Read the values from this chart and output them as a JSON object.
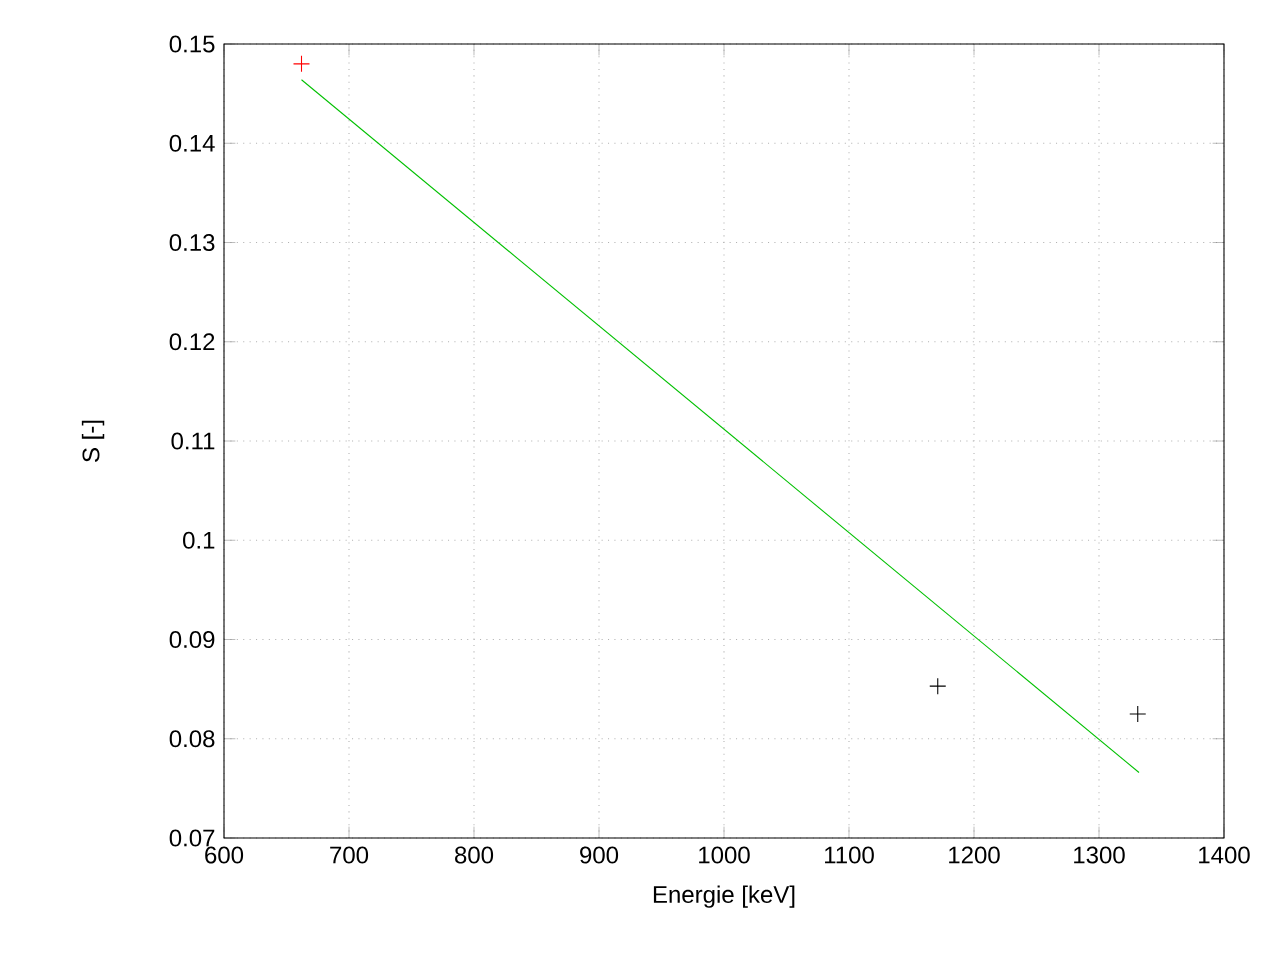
{
  "chart_data": {
    "type": "scatter",
    "xlabel": "Energie [keV]",
    "ylabel": "S [-]",
    "xlim": [
      600,
      1400
    ],
    "ylim": [
      0.07,
      0.15
    ],
    "xticks": [
      600,
      700,
      800,
      900,
      1000,
      1100,
      1200,
      1300,
      1400
    ],
    "yticks": [
      0.07,
      0.08,
      0.09,
      0.1,
      0.11,
      0.12,
      0.13,
      0.14,
      0.15
    ],
    "grid": true,
    "series": [
      {
        "color": "#ff0000",
        "marker": "cross",
        "x": [
          662
        ],
        "values": [
          0.148
        ]
      },
      {
        "color": "#000000",
        "marker": "cross",
        "x": [
          1171,
          1331
        ],
        "values": [
          0.0853,
          0.0825
        ]
      },
      {
        "type": "line",
        "color": "#00c000",
        "marker": "none",
        "x": [
          662,
          1332
        ],
        "values": [
          0.1464,
          0.0766
        ]
      }
    ]
  }
}
